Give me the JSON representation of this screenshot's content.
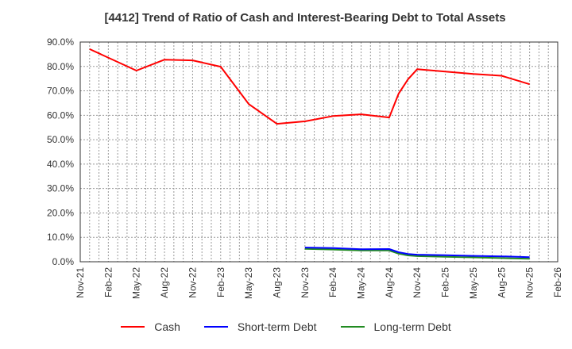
{
  "title": "[4412]  Trend of Ratio of Cash and Interest-Bearing Debt to Total Assets",
  "legend": [
    {
      "label": "Cash",
      "color": "#ff0000"
    },
    {
      "label": "Short-term Debt",
      "color": "#0000ff"
    },
    {
      "label": "Long-term Debt",
      "color": "#228b22"
    }
  ],
  "chart_data": {
    "type": "line",
    "title": "[4412]  Trend of Ratio of Cash and Interest-Bearing Debt to Total Assets",
    "xlabel": "",
    "ylabel": "",
    "ylim": [
      0,
      90
    ],
    "y_ticks": [
      "0.0%",
      "10.0%",
      "20.0%",
      "30.0%",
      "40.0%",
      "50.0%",
      "60.0%",
      "70.0%",
      "80.0%",
      "90.0%"
    ],
    "x_ticks": [
      "Nov-21",
      "Feb-22",
      "May-22",
      "Aug-22",
      "Nov-22",
      "Feb-23",
      "May-23",
      "Aug-23",
      "Nov-23",
      "Feb-24",
      "May-24",
      "Aug-24",
      "Nov-24",
      "Feb-25",
      "May-25",
      "Aug-25",
      "Nov-25",
      "Feb-26"
    ],
    "grid": true,
    "legend_position": "bottom",
    "series": [
      {
        "name": "Cash",
        "color": "#ff0000",
        "points": [
          {
            "x": "Dec-21",
            "m": 1,
            "y": 87.1
          },
          {
            "x": "May-22",
            "m": 6,
            "y": 78.3
          },
          {
            "x": "Aug-22",
            "m": 9,
            "y": 82.8
          },
          {
            "x": "Nov-22",
            "m": 12,
            "y": 82.5
          },
          {
            "x": "Feb-23",
            "m": 15,
            "y": 79.9
          },
          {
            "x": "May-23",
            "m": 18,
            "y": 64.6
          },
          {
            "x": "Aug-23",
            "m": 21,
            "y": 56.5
          },
          {
            "x": "Nov-23",
            "m": 24,
            "y": 57.5
          },
          {
            "x": "Feb-24",
            "m": 27,
            "y": 59.7
          },
          {
            "x": "May-24",
            "m": 30,
            "y": 60.4
          },
          {
            "x": "Aug-24",
            "m": 33,
            "y": 59.1
          },
          {
            "x": "Sep-24",
            "m": 34,
            "y": 68.8
          },
          {
            "x": "Oct-24",
            "m": 35,
            "y": 74.7
          },
          {
            "x": "Nov-24",
            "m": 36,
            "y": 78.9
          },
          {
            "x": "Feb-25",
            "m": 39,
            "y": 77.9
          },
          {
            "x": "May-25",
            "m": 42,
            "y": 76.9
          },
          {
            "x": "Aug-25",
            "m": 45,
            "y": 76.2
          },
          {
            "x": "Nov-25",
            "m": 48,
            "y": 72.7
          }
        ]
      },
      {
        "name": "Short-term Debt",
        "color": "#0000ff",
        "points": [
          {
            "x": "Nov-23",
            "m": 24,
            "y": 5.8
          },
          {
            "x": "Feb-24",
            "m": 27,
            "y": 5.6
          },
          {
            "x": "May-24",
            "m": 30,
            "y": 5.1
          },
          {
            "x": "Aug-24",
            "m": 33,
            "y": 5.2
          },
          {
            "x": "Sep-24",
            "m": 34,
            "y": 3.9
          },
          {
            "x": "Oct-24",
            "m": 35,
            "y": 3.2
          },
          {
            "x": "Nov-24",
            "m": 36,
            "y": 2.9
          },
          {
            "x": "Feb-25",
            "m": 39,
            "y": 2.7
          },
          {
            "x": "May-25",
            "m": 42,
            "y": 2.4
          },
          {
            "x": "Aug-25",
            "m": 45,
            "y": 2.2
          },
          {
            "x": "Nov-25",
            "m": 48,
            "y": 1.9
          }
        ]
      },
      {
        "name": "Long-term Debt",
        "color": "#228b22",
        "points": [
          {
            "x": "Nov-23",
            "m": 24,
            "y": 5.3
          },
          {
            "x": "Feb-24",
            "m": 27,
            "y": 5.0
          },
          {
            "x": "May-24",
            "m": 30,
            "y": 4.6
          },
          {
            "x": "Aug-24",
            "m": 33,
            "y": 4.6
          },
          {
            "x": "Sep-24",
            "m": 34,
            "y": 3.3
          },
          {
            "x": "Oct-24",
            "m": 35,
            "y": 2.6
          },
          {
            "x": "Nov-24",
            "m": 36,
            "y": 2.3
          },
          {
            "x": "Feb-25",
            "m": 39,
            "y": 2.0
          },
          {
            "x": "May-25",
            "m": 42,
            "y": 1.8
          },
          {
            "x": "Aug-25",
            "m": 45,
            "y": 1.5
          },
          {
            "x": "Nov-25",
            "m": 48,
            "y": 1.2
          }
        ]
      }
    ]
  }
}
